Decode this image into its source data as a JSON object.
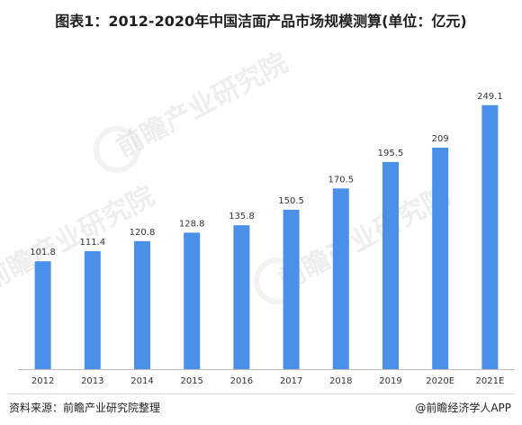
{
  "title": "图表1：2012-2020年中国洁面产品市场规模测算(单位：亿元)",
  "watermark": "前瞻产业研究院",
  "source": "资料来源：前瞻产业研究院整理",
  "brand": "@前瞻经济学人APP",
  "colors": {
    "bar": "#4a8fe8",
    "axis": "#bfbfbf",
    "label": "#333333"
  },
  "chart_data": {
    "type": "bar",
    "categories": [
      "2012",
      "2013",
      "2014",
      "2015",
      "2016",
      "2017",
      "2018",
      "2019",
      "2020E",
      "2021E"
    ],
    "values": [
      101.8,
      111.4,
      120.8,
      128.8,
      135.8,
      150.5,
      170.5,
      195.5,
      209,
      249.1
    ],
    "value_labels": [
      "101.8",
      "111.4",
      "120.8",
      "128.8",
      "135.8",
      "150.5",
      "170.5",
      "195.5",
      "209",
      "249.1"
    ],
    "title": "图表1：2012-2020年中国洁面产品市场规模测算(单位：亿元)",
    "xlabel": "",
    "ylabel": "",
    "ylim": [
      0,
      260
    ],
    "grid": false,
    "legend": "none"
  }
}
